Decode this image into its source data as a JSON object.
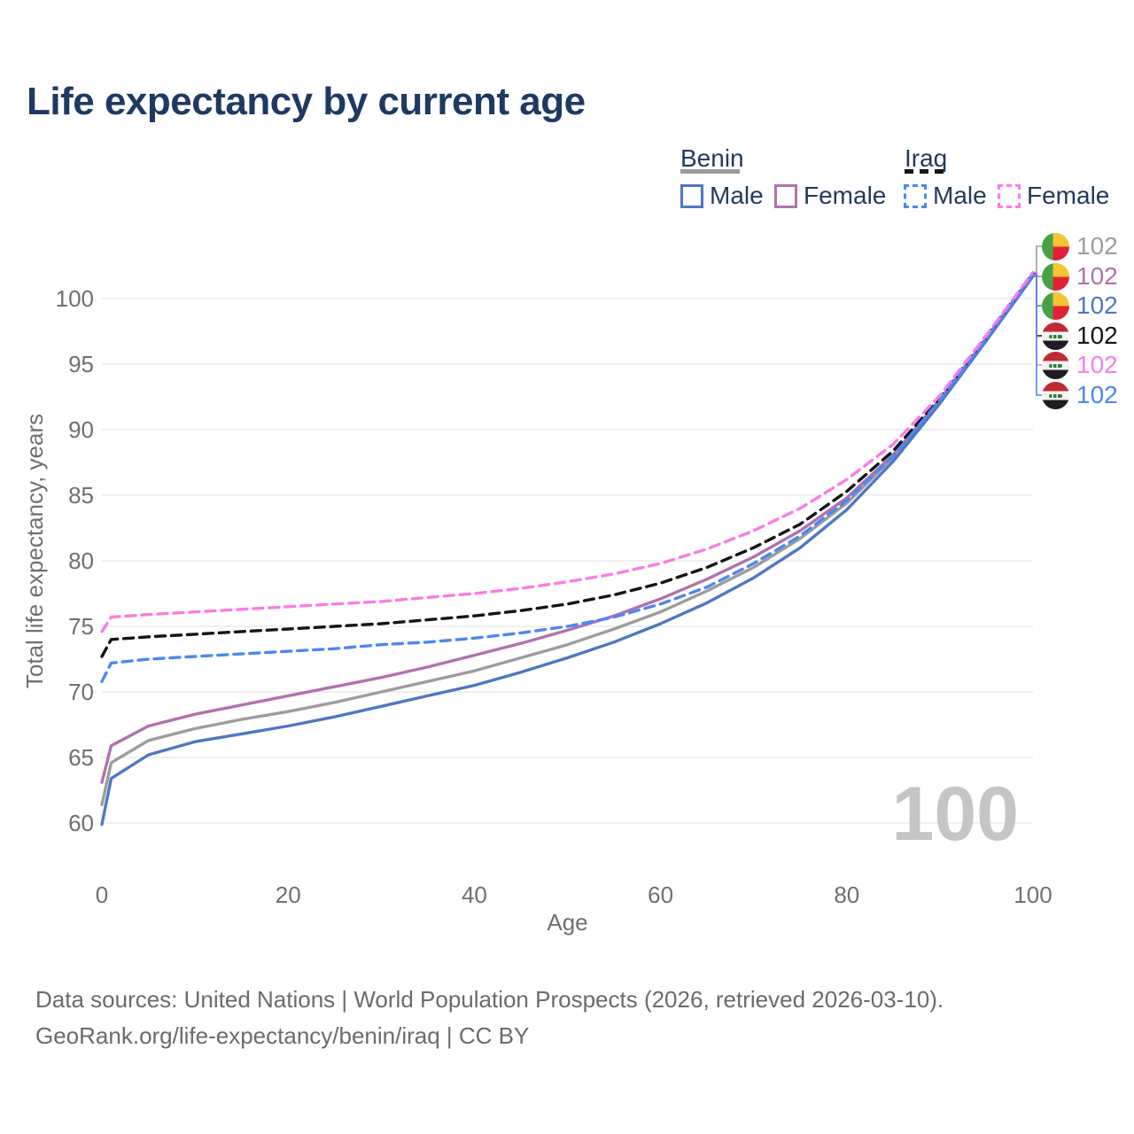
{
  "title": "Life expectancy by current age",
  "legend": {
    "benin": {
      "label": "Benin",
      "male_label": "Male",
      "female_label": "Female"
    },
    "iraq": {
      "label": "Iraq",
      "male_label": "Male",
      "female_label": "Female"
    }
  },
  "chart_data": {
    "type": "line",
    "title": "Life expectancy by current age",
    "xlabel": "Age",
    "ylabel": "Total life expectancy, years",
    "xlim": [
      0,
      100
    ],
    "ylim": [
      60,
      102
    ],
    "x_ticks": [
      0,
      20,
      40,
      60,
      80,
      100
    ],
    "y_ticks": [
      60,
      65,
      70,
      75,
      80,
      85,
      90,
      95,
      100
    ],
    "grid": true,
    "legend_position": "top-right",
    "watermark": "100",
    "x": [
      0,
      1,
      5,
      10,
      15,
      20,
      25,
      30,
      35,
      40,
      45,
      50,
      55,
      60,
      65,
      70,
      75,
      80,
      85,
      90,
      95,
      100
    ],
    "series": [
      {
        "name": "Benin Both sexes",
        "country": "Benin",
        "sex": "both",
        "color": "#9d9d9d",
        "dash": "solid",
        "values": [
          61.4,
          64.6,
          66.3,
          67.2,
          67.9,
          68.5,
          69.2,
          70.0,
          70.8,
          71.6,
          72.6,
          73.6,
          74.8,
          76.1,
          77.7,
          79.5,
          81.7,
          84.4,
          87.9,
          92.2,
          96.9,
          101.8
        ]
      },
      {
        "name": "Benin Female",
        "country": "Benin",
        "sex": "female",
        "color": "#b172ad",
        "dash": "solid",
        "values": [
          63.1,
          65.9,
          67.4,
          68.3,
          69.0,
          69.7,
          70.4,
          71.1,
          71.9,
          72.8,
          73.7,
          74.7,
          75.8,
          77.1,
          78.6,
          80.3,
          82.3,
          84.8,
          88.1,
          92.3,
          97.0,
          101.9
        ]
      },
      {
        "name": "Benin Male",
        "country": "Benin",
        "sex": "male",
        "color": "#4f77c3",
        "dash": "solid",
        "values": [
          59.9,
          63.4,
          65.2,
          66.2,
          66.8,
          67.4,
          68.1,
          68.9,
          69.7,
          70.5,
          71.5,
          72.6,
          73.8,
          75.2,
          76.8,
          78.7,
          81.0,
          83.9,
          87.6,
          92.0,
          96.8,
          101.7
        ]
      },
      {
        "name": "Iraq Both sexes",
        "country": "Iraq",
        "sex": "both",
        "color": "#141414",
        "dash": "dashed",
        "values": [
          72.7,
          74.0,
          74.2,
          74.4,
          74.6,
          74.8,
          75.0,
          75.2,
          75.5,
          75.8,
          76.2,
          76.7,
          77.4,
          78.3,
          79.5,
          81.0,
          82.8,
          85.3,
          88.4,
          92.4,
          97.1,
          101.95
        ]
      },
      {
        "name": "Iraq Male",
        "country": "Iraq",
        "sex": "male",
        "color": "#4e87f0",
        "dash": "dashed",
        "values": [
          70.8,
          72.2,
          72.5,
          72.7,
          72.9,
          73.1,
          73.3,
          73.6,
          73.8,
          74.1,
          74.5,
          75.0,
          75.7,
          76.7,
          78.0,
          79.8,
          81.9,
          84.6,
          88.0,
          92.25,
          96.95,
          101.85
        ]
      },
      {
        "name": "Iraq Female",
        "country": "Iraq",
        "sex": "female",
        "color": "#fb7be8",
        "dash": "dashed",
        "values": [
          74.6,
          75.7,
          75.9,
          76.1,
          76.3,
          76.5,
          76.7,
          76.9,
          77.2,
          77.5,
          77.9,
          78.4,
          79.0,
          79.8,
          80.9,
          82.3,
          84.0,
          86.2,
          88.9,
          92.6,
          97.2,
          102.0
        ]
      }
    ]
  },
  "end_labels": [
    {
      "value": "102",
      "flag": "benin",
      "series": "Benin Both sexes",
      "color": "#9d9d9d"
    },
    {
      "value": "102",
      "flag": "benin",
      "series": "Benin Female",
      "color": "#b172ad"
    },
    {
      "value": "102",
      "flag": "benin",
      "series": "Benin Male",
      "color": "#4f77c3"
    },
    {
      "value": "102",
      "flag": "iraq",
      "series": "Iraq Both sexes",
      "color": "#141414"
    },
    {
      "value": "102",
      "flag": "iraq",
      "series": "Iraq Female",
      "color": "#fb7be8"
    },
    {
      "value": "102",
      "flag": "iraq",
      "series": "Iraq Male",
      "color": "#4e87f0"
    }
  ],
  "footer": {
    "line1": "Data sources: United Nations | World Population Prospects (2026, retrieved 2026-03-10).",
    "line2": "GeoRank.org/life-expectancy/benin/iraq | CC BY"
  }
}
